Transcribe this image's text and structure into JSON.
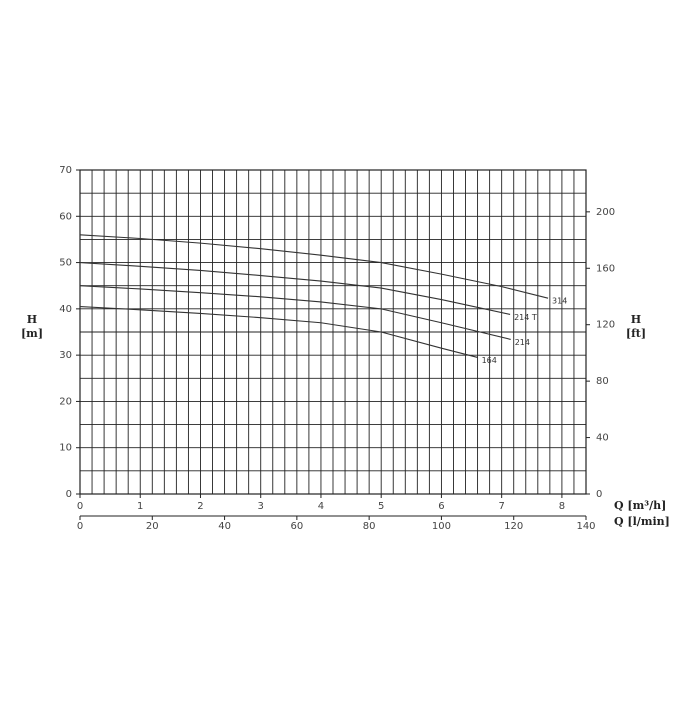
{
  "chart_data": {
    "type": "line",
    "y_label": [
      "H",
      "[m]"
    ],
    "y2_label": [
      "H",
      "[ft]"
    ],
    "x_label": "Q [m³/h]",
    "x2_label": "Q [l/min]",
    "xlim": [
      0,
      8.4
    ],
    "xticks": [
      0,
      1,
      2,
      3,
      4,
      5,
      6,
      7,
      8
    ],
    "x2lim": [
      0,
      140
    ],
    "x2ticks": [
      0,
      20,
      40,
      60,
      80,
      100,
      120,
      140
    ],
    "ylim": [
      0,
      70
    ],
    "yticks": [
      0,
      10,
      20,
      30,
      40,
      50,
      60,
      70
    ],
    "y2lim": [
      0,
      229.66
    ],
    "y2ticks": [
      0,
      40,
      80,
      120,
      160,
      200
    ],
    "grid": true,
    "grid_step_x": 0.2,
    "grid_step_y": 5,
    "series": [
      {
        "name": "314",
        "color": "#333333",
        "x": [
          0,
          1,
          2,
          3,
          4,
          5,
          6,
          7,
          7.77
        ],
        "values": [
          56,
          55.2,
          54.2,
          53,
          51.6,
          50,
          47.5,
          44.8,
          42.3
        ]
      },
      {
        "name": "214 T",
        "color": "#333333",
        "x": [
          0,
          1,
          2,
          3,
          4,
          5,
          6,
          7.14
        ],
        "values": [
          50,
          49.2,
          48.3,
          47.2,
          46,
          44.5,
          42,
          38.8
        ]
      },
      {
        "name": "214",
        "color": "#333333",
        "x": [
          0,
          1,
          2,
          3,
          4,
          5,
          6,
          7.15
        ],
        "values": [
          45,
          44.3,
          43.5,
          42.6,
          41.5,
          40,
          37,
          33.4
        ]
      },
      {
        "name": "164",
        "color": "#333333",
        "x": [
          0,
          1,
          2,
          3,
          4,
          5,
          6,
          6.6
        ],
        "values": [
          40.5,
          39.8,
          39,
          38.1,
          37,
          35,
          31.5,
          29.5
        ]
      }
    ]
  }
}
